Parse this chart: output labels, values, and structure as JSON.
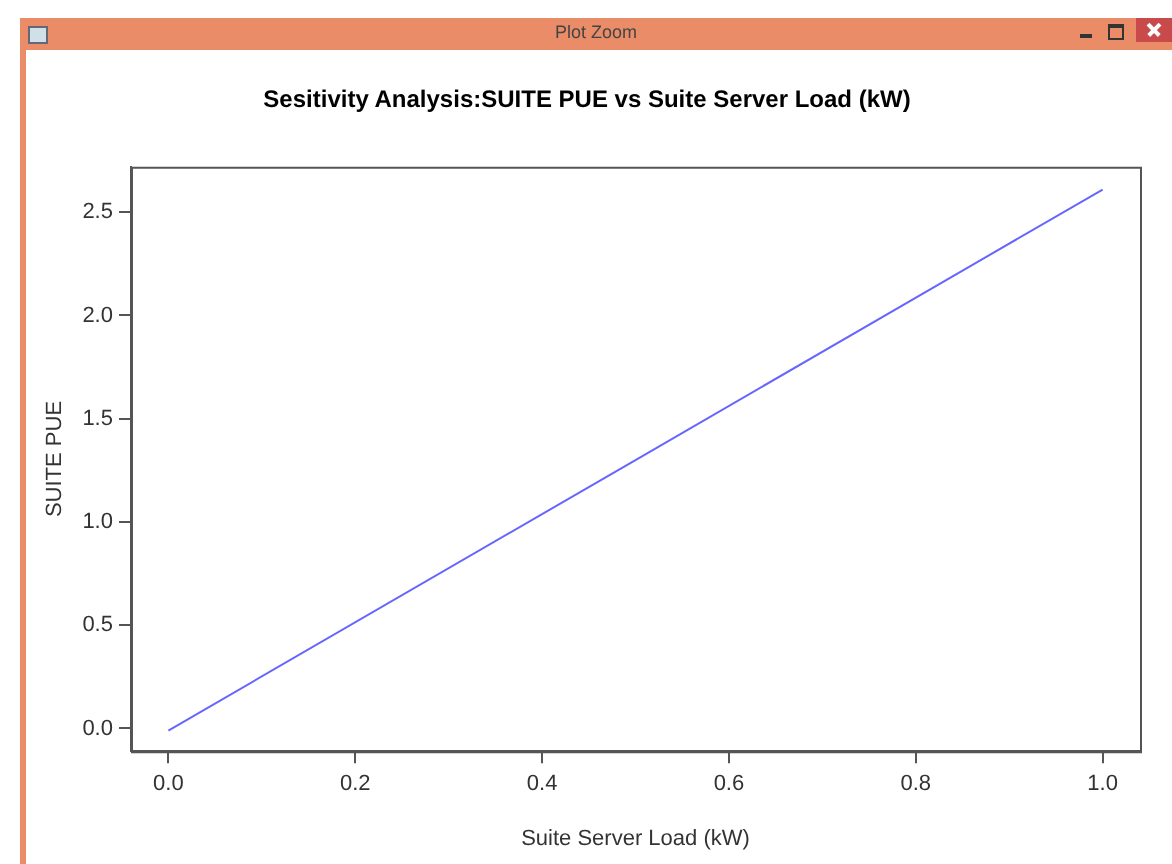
{
  "chart_data": {
    "type": "line",
    "title": "Sesitivity Analysis:SUITE PUE vs Suite Server Load (kW)",
    "xlabel": "Suite Server Load (kW)",
    "ylabel": "SUITE PUE",
    "annotations": [
      "Plot Zoom"
    ],
    "x": [
      0,
      0.5,
      1
    ],
    "series": [
      {
        "color": "#6666ff",
        "values": [
          -0.01,
          1.3,
          2.61
        ]
      }
    ],
    "xlim": [
      -0.04,
      1.04
    ],
    "xticks": [
      {
        "value": 0,
        "label": "0.0"
      },
      0.2,
      0.4,
      0.6,
      0.8,
      {
        "value": 1,
        "label": "1.0"
      }
    ],
    "ylim": [
      -0.11,
      2.72
    ],
    "yticks": [
      {
        "value": 0,
        "label": "0.0"
      },
      0.5,
      {
        "value": 1,
        "label": "1.0"
      },
      1.5,
      {
        "value": 2,
        "label": "2.0"
      },
      2.5
    ],
    "grid": false,
    "legend": false,
    "marker": "none",
    "line_style": "solid"
  }
}
